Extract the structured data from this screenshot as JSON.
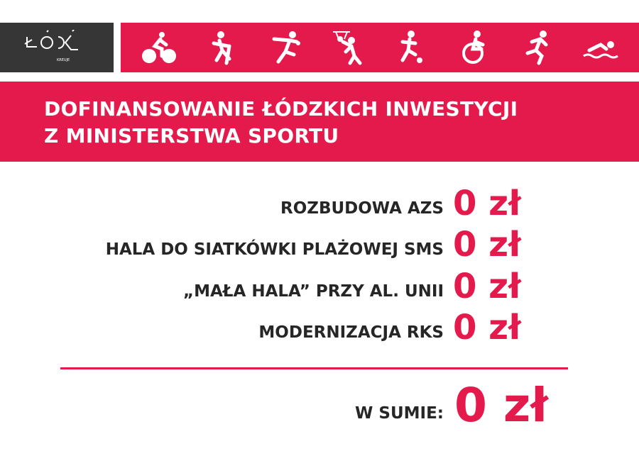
{
  "logo": {
    "text": "ŁÓDŹ",
    "tagline": "KREUJE"
  },
  "icons": [
    "cycling-icon",
    "hockey-icon",
    "handball-icon",
    "basketball-icon",
    "football-icon",
    "wheelchair-icon",
    "running-icon",
    "swimming-icon"
  ],
  "colors": {
    "accent": "#e31a4b",
    "dark": "#363636"
  },
  "title": {
    "line1": "DOFINANSOWANIE ŁÓDZKICH INWESTYCJI",
    "line2": "Z MINISTERSTWA SPORTU"
  },
  "rows": [
    {
      "label": "ROZBUDOWA AZS",
      "value": "0 zł"
    },
    {
      "label": "HALA DO SIATKÓWKI PLAŻOWEJ SMS",
      "value": "0 zł"
    },
    {
      "label": "„MAŁA HALA”  PRZY AL. UNII",
      "value": "0 zł"
    },
    {
      "label": "MODERNIZACJA RKS",
      "value": "0 zł"
    }
  ],
  "total": {
    "label": "W SUMIE:",
    "value": "0 zł"
  }
}
